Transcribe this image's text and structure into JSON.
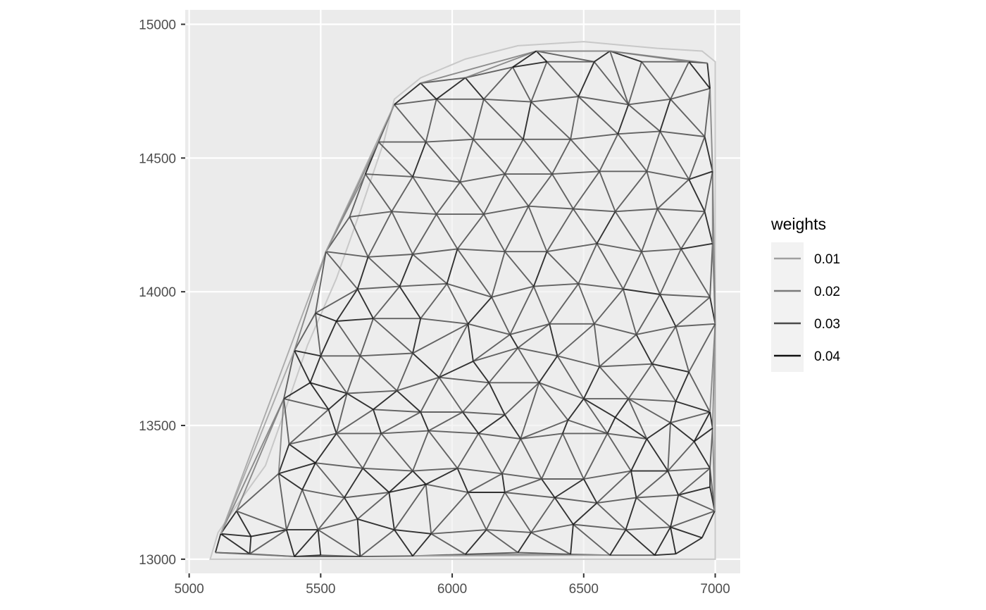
{
  "chart_data": {
    "type": "network",
    "title": "",
    "xlabel": "",
    "ylabel": "",
    "xlim": [
      4985,
      7095
    ],
    "ylim": [
      12947,
      15054
    ],
    "x_ticks": [
      5000,
      5500,
      6000,
      6500,
      7000
    ],
    "y_ticks": [
      13000,
      13500,
      14000,
      14500,
      15000
    ],
    "x_tick_labels": [
      "5000",
      "5500",
      "6000",
      "6500",
      "7000"
    ],
    "y_tick_labels": [
      "13000",
      "13500",
      "14000",
      "14500",
      "15000"
    ],
    "grid": true,
    "panel_background": "#ebebeb",
    "grid_color": "#ffffff",
    "legend": {
      "title": "weights",
      "placement": "right",
      "entries": [
        {
          "label": "0.01",
          "value": 0.01,
          "color": "#a0a0a0"
        },
        {
          "label": "0.02",
          "value": 0.02,
          "color": "#7a7a7a"
        },
        {
          "label": "0.03",
          "value": 0.03,
          "color": "#4a4a4a"
        },
        {
          "label": "0.04",
          "value": 0.04,
          "color": "#111111"
        }
      ]
    },
    "region_outline": {
      "color": "#c8c8c8",
      "fill": "#efefef",
      "points": [
        [
          5080,
          13000
        ],
        [
          5110,
          13100
        ],
        [
          5180,
          13200
        ],
        [
          5290,
          13350
        ],
        [
          5380,
          13600
        ],
        [
          5450,
          13800
        ],
        [
          5560,
          14050
        ],
        [
          5650,
          14300
        ],
        [
          5740,
          14560
        ],
        [
          5780,
          14720
        ],
        [
          5880,
          14800
        ],
        [
          6050,
          14870
        ],
        [
          6250,
          14920
        ],
        [
          6500,
          14935
        ],
        [
          6780,
          14910
        ],
        [
          6950,
          14900
        ],
        [
          7000,
          14860
        ],
        [
          7000,
          13000
        ]
      ]
    },
    "nodes": [
      [
        5100,
        13025
      ],
      [
        5120,
        13095
      ],
      [
        5180,
        13180
      ],
      [
        5230,
        13020
      ],
      [
        5235,
        13085
      ],
      [
        5400,
        13010
      ],
      [
        5500,
        13015
      ],
      [
        5650,
        13010
      ],
      [
        5850,
        13012
      ],
      [
        6050,
        13018
      ],
      [
        6250,
        13025
      ],
      [
        6450,
        13018
      ],
      [
        6600,
        13015
      ],
      [
        6770,
        13015
      ],
      [
        6850,
        13020
      ],
      [
        6950,
        13080
      ],
      [
        6998,
        13180
      ],
      [
        5370,
        13110
      ],
      [
        5490,
        13110
      ],
      [
        5640,
        13150
      ],
      [
        5780,
        13110
      ],
      [
        5920,
        13095
      ],
      [
        6130,
        13110
      ],
      [
        6300,
        13100
      ],
      [
        6460,
        13130
      ],
      [
        6660,
        13110
      ],
      [
        6830,
        13120
      ],
      [
        5430,
        13260
      ],
      [
        5590,
        13230
      ],
      [
        5760,
        13250
      ],
      [
        5900,
        13280
      ],
      [
        6060,
        13250
      ],
      [
        6200,
        13250
      ],
      [
        6390,
        13230
      ],
      [
        6550,
        13210
      ],
      [
        6700,
        13230
      ],
      [
        6860,
        13240
      ],
      [
        6980,
        13270
      ],
      [
        5340,
        13320
      ],
      [
        5480,
        13360
      ],
      [
        5660,
        13340
      ],
      [
        5850,
        13330
      ],
      [
        6020,
        13340
      ],
      [
        6190,
        13320
      ],
      [
        6340,
        13300
      ],
      [
        6500,
        13300
      ],
      [
        6680,
        13330
      ],
      [
        6820,
        13330
      ],
      [
        6980,
        13340
      ],
      [
        5380,
        13430
      ],
      [
        5560,
        13470
      ],
      [
        5730,
        13470
      ],
      [
        5910,
        13480
      ],
      [
        6100,
        13470
      ],
      [
        6260,
        13450
      ],
      [
        6420,
        13470
      ],
      [
        6590,
        13470
      ],
      [
        6740,
        13450
      ],
      [
        6920,
        13440
      ],
      [
        5360,
        13600
      ],
      [
        5530,
        13560
      ],
      [
        5700,
        13560
      ],
      [
        5880,
        13550
      ],
      [
        6040,
        13550
      ],
      [
        6200,
        13540
      ],
      [
        6440,
        13520
      ],
      [
        6620,
        13530
      ],
      [
        6830,
        13510
      ],
      [
        6990,
        13490
      ],
      [
        5460,
        13660
      ],
      [
        5600,
        13620
      ],
      [
        5790,
        13630
      ],
      [
        5950,
        13680
      ],
      [
        6140,
        13660
      ],
      [
        6330,
        13660
      ],
      [
        6500,
        13600
      ],
      [
        6670,
        13600
      ],
      [
        6850,
        13590
      ],
      [
        6980,
        13550
      ],
      [
        5400,
        13780
      ],
      [
        5500,
        13760
      ],
      [
        5650,
        13760
      ],
      [
        5850,
        13770
      ],
      [
        6080,
        13740
      ],
      [
        6250,
        13790
      ],
      [
        6400,
        13760
      ],
      [
        6560,
        13720
      ],
      [
        6760,
        13730
      ],
      [
        6900,
        13700
      ],
      [
        5560,
        13890
      ],
      [
        5700,
        13900
      ],
      [
        5880,
        13900
      ],
      [
        6060,
        13880
      ],
      [
        6220,
        13840
      ],
      [
        6370,
        13880
      ],
      [
        6540,
        13880
      ],
      [
        6700,
        13840
      ],
      [
        6850,
        13870
      ],
      [
        7000,
        13880
      ],
      [
        5480,
        13920
      ],
      [
        5640,
        14010
      ],
      [
        5800,
        14020
      ],
      [
        5980,
        14030
      ],
      [
        6150,
        13980
      ],
      [
        6310,
        14020
      ],
      [
        6480,
        14030
      ],
      [
        6650,
        14010
      ],
      [
        6790,
        13990
      ],
      [
        6980,
        13980
      ],
      [
        5520,
        14150
      ],
      [
        5680,
        14130
      ],
      [
        5850,
        14140
      ],
      [
        6020,
        14160
      ],
      [
        6200,
        14150
      ],
      [
        6360,
        14150
      ],
      [
        6550,
        14180
      ],
      [
        6720,
        14150
      ],
      [
        6870,
        14160
      ],
      [
        6990,
        14180
      ],
      [
        5610,
        14280
      ],
      [
        5770,
        14300
      ],
      [
        5940,
        14290
      ],
      [
        6120,
        14290
      ],
      [
        6290,
        14320
      ],
      [
        6460,
        14310
      ],
      [
        6620,
        14300
      ],
      [
        6780,
        14310
      ],
      [
        6960,
        14300
      ],
      [
        5670,
        14440
      ],
      [
        5850,
        14430
      ],
      [
        6030,
        14410
      ],
      [
        6200,
        14440
      ],
      [
        6380,
        14440
      ],
      [
        6560,
        14450
      ],
      [
        6740,
        14450
      ],
      [
        6900,
        14420
      ],
      [
        6990,
        14450
      ],
      [
        5720,
        14560
      ],
      [
        5900,
        14560
      ],
      [
        6080,
        14570
      ],
      [
        6270,
        14570
      ],
      [
        6450,
        14570
      ],
      [
        6630,
        14590
      ],
      [
        6790,
        14600
      ],
      [
        6960,
        14580
      ],
      [
        5780,
        14700
      ],
      [
        5940,
        14720
      ],
      [
        6120,
        14720
      ],
      [
        6300,
        14710
      ],
      [
        6480,
        14730
      ],
      [
        6670,
        14700
      ],
      [
        6830,
        14720
      ],
      [
        6980,
        14760
      ],
      [
        5880,
        14780
      ],
      [
        6050,
        14800
      ],
      [
        6230,
        14840
      ],
      [
        6360,
        14860
      ],
      [
        6540,
        14860
      ],
      [
        6720,
        14860
      ],
      [
        6900,
        14860
      ],
      [
        6320,
        14900
      ],
      [
        6600,
        14900
      ],
      [
        6970,
        14855
      ]
    ],
    "weight_scale": {
      "min": 0.01,
      "max": 0.04
    }
  }
}
